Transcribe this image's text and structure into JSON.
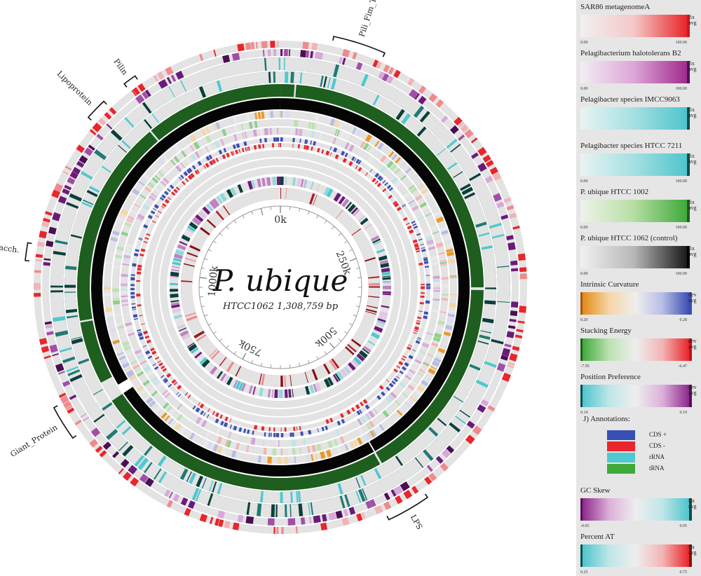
{
  "diagram": {
    "title": "P. ubique",
    "subtitle": "HTCC1062  1,308,759 bp",
    "ticks": [
      "0k",
      "250k",
      "500k",
      "750k",
      "1000k"
    ],
    "annotations": [
      "Pili_Fim_Trans",
      "Pilin",
      "Lipoprotein",
      "Polysacch.",
      "Giant_Protein",
      "LPS"
    ],
    "colors": {
      "ring_bg": "#e3e3e3",
      "red": "#e8262b",
      "purple": "#6c1a7a",
      "teal": "#0d5a52",
      "green": "#1e5e1e",
      "black": "#050505",
      "blue": "#3a4fb3",
      "cyan": "#4fc8cf",
      "orange": "#e89a2c"
    }
  },
  "legend": {
    "items": [
      {
        "title": "SAR86 metagenomeA",
        "min": "0.00",
        "max": "100.00",
        "cap1": "fix",
        "cap2": "avg",
        "grad": "linear-gradient(to right,#f2f0f0,#f5c8c8,#e8262b)",
        "end": "#d6151b"
      },
      {
        "title": "Pelagibacterium halotolerans B2",
        "min": "0.00",
        "max": "100.00",
        "cap1": "fix",
        "cap2": "avg",
        "grad": "linear-gradient(to right,#f2eef3,#dda6d9,#a02b8f)",
        "end": "#55105b"
      },
      {
        "title": "Pelagibacter species IMCC9063",
        "min": "",
        "max": "",
        "cap1": "fix",
        "cap2": "avg",
        "grad": "linear-gradient(to right,#eaf3f3,#a5e0e2,#4ec5cc)",
        "end": "#0b4f4c"
      },
      {
        "title": "Pelagibacter species HTCC 7211",
        "min": "0.00",
        "max": "100.00",
        "cap1": "fix",
        "cap2": "avg",
        "grad": "linear-gradient(to right,#eaf3f3,#a5e0e2,#4ec5cc)",
        "end": "#0b4f4c"
      },
      {
        "title": "P. ubique HTCC 1002",
        "min": "0.00",
        "max": "100.00",
        "cap1": "fix",
        "cap2": "avg",
        "grad": "linear-gradient(to right,#eef3ea,#b7dea5,#3faa3a)",
        "end": "#1e5e1e"
      },
      {
        "title": "P. ubique HTCC 1062 (control)",
        "min": "0.00",
        "max": "100.00",
        "cap1": "fix",
        "cap2": "avg",
        "grad": "linear-gradient(to right,#f2f0f0,#b8b8b8,#1a1a1a)",
        "end": "#000000"
      },
      {
        "title": "Intrinsic Curvature",
        "min": "0.20",
        "max": "0.28",
        "cap1": "dev",
        "cap2": "avg",
        "grad": "linear-gradient(to right,#e38b17,#f5d6a6,#eeeeee,#b8bde6,#3a4fb3)",
        "end": "#3a4fb3",
        "start": "#a5561a"
      },
      {
        "title": "Stacking Energy",
        "min": "-7.50",
        "max": "-6.47",
        "cap1": "dev",
        "cap2": "avg",
        "grad": "linear-gradient(to right,#3faa3a,#bde2b3,#eeeeee,#f3b5b5,#e8262b)",
        "end": "#c4101a",
        "start": "#1e5e1e"
      },
      {
        "title": "Position Preference",
        "min": "0.14",
        "max": "0.19",
        "cap1": "dev",
        "cap2": "avg",
        "grad": "linear-gradient(to right,#4ec5cc,#bfe6e8,#eeeeee,#dcb0da,#8d2a8a)",
        "end": "#55105b",
        "start": "#0b4f4c"
      },
      {
        "title": "GC Skew",
        "min": "-0.05",
        "max": "0.05",
        "cap1": "fix",
        "cap2": "avg",
        "grad": "linear-gradient(to right,#8d2a8a,#dcb0da,#eeeeee,#bfe6e8,#4ec5cc)",
        "end": "#0b4f4c",
        "start": "#55105b"
      },
      {
        "title": "Percent AT",
        "min": "0.25",
        "max": "0.75",
        "cap1": "fix",
        "cap2": "avg",
        "grad": "linear-gradient(to right,#4ec5cc,#bfe6e8,#eeeeee,#f3b5b5,#e8262b)",
        "end": "#8a0e12",
        "start": "#0b4f4c"
      }
    ],
    "annotations": {
      "title": "J) Annotations:",
      "rows": [
        {
          "label": "CDS +",
          "color": "#3a4fb3"
        },
        {
          "label": "CDS -",
          "color": "#e8262b"
        },
        {
          "label": "rRNA",
          "color": "#4fc8cf"
        },
        {
          "label": "tRNA",
          "color": "#3faa3a"
        }
      ]
    }
  }
}
